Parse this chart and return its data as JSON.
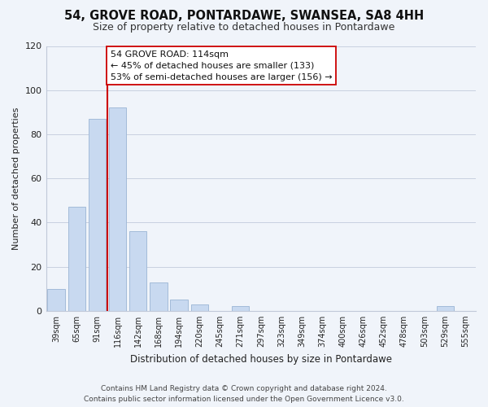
{
  "title": "54, GROVE ROAD, PONTARDAWE, SWANSEA, SA8 4HH",
  "subtitle": "Size of property relative to detached houses in Pontardawe",
  "xlabel": "Distribution of detached houses by size in Pontardawe",
  "ylabel": "Number of detached properties",
  "bar_labels": [
    "39sqm",
    "65sqm",
    "91sqm",
    "116sqm",
    "142sqm",
    "168sqm",
    "194sqm",
    "220sqm",
    "245sqm",
    "271sqm",
    "297sqm",
    "323sqm",
    "349sqm",
    "374sqm",
    "400sqm",
    "426sqm",
    "452sqm",
    "478sqm",
    "503sqm",
    "529sqm",
    "555sqm"
  ],
  "bar_values": [
    10,
    47,
    87,
    92,
    36,
    13,
    5,
    3,
    0,
    2,
    0,
    0,
    0,
    0,
    0,
    0,
    0,
    0,
    0,
    2,
    0
  ],
  "bar_color": "#c8d9f0",
  "bar_edge_color": "#9ab4d4",
  "vline_color": "#cc0000",
  "annotation_line1": "54 GROVE ROAD: 114sqm",
  "annotation_line2": "← 45% of detached houses are smaller (133)",
  "annotation_line3": "53% of semi-detached houses are larger (156) →",
  "ylim": [
    0,
    120
  ],
  "yticks": [
    0,
    20,
    40,
    60,
    80,
    100,
    120
  ],
  "footer_line1": "Contains HM Land Registry data © Crown copyright and database right 2024.",
  "footer_line2": "Contains public sector information licensed under the Open Government Licence v3.0.",
  "background_color": "#f0f4fa",
  "grid_color": "#c8d0e0",
  "title_fontsize": 10.5,
  "subtitle_fontsize": 9
}
